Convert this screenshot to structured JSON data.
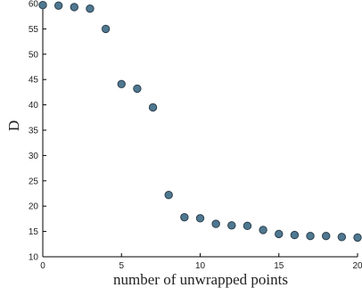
{
  "chart_data": {
    "type": "scatter",
    "title": "",
    "xlabel": "number of unwrapped points",
    "ylabel": "D",
    "xlim": [
      0,
      20
    ],
    "ylim": [
      10,
      60
    ],
    "xticks": [
      0,
      5,
      10,
      15,
      20
    ],
    "yticks": [
      10,
      15,
      20,
      25,
      30,
      35,
      40,
      45,
      50,
      55,
      60
    ],
    "grid": false,
    "legend": "none",
    "marker_color": "#4f7891",
    "marker_edge": "#2d3f4d",
    "series": [
      {
        "x": [
          0,
          1,
          2,
          3,
          4,
          5,
          6,
          7,
          8,
          9,
          10,
          11,
          12,
          13,
          14,
          15,
          16,
          17,
          18,
          19,
          20
        ],
        "y": [
          59.7,
          59.6,
          59.3,
          59.0,
          55.0,
          44.1,
          43.2,
          39.5,
          22.2,
          17.8,
          17.6,
          16.5,
          16.2,
          16.1,
          15.3,
          14.5,
          14.3,
          14.1,
          14.1,
          13.9,
          13.8
        ]
      }
    ]
  }
}
